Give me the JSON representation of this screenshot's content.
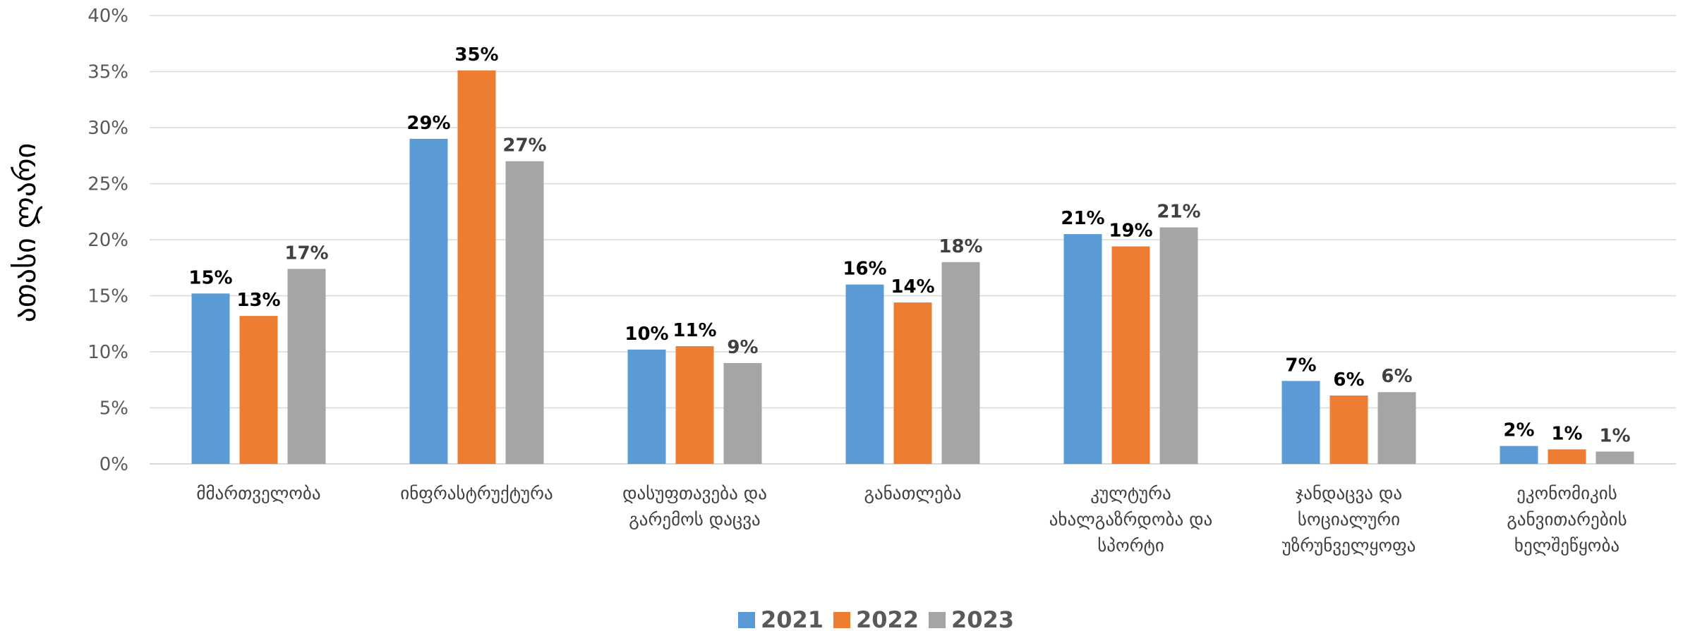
{
  "chart_data": {
    "type": "bar",
    "title": "",
    "ylabel": "ათასი ლარი",
    "xlabel": "",
    "ylim": [
      0,
      40
    ],
    "y_ticks": [
      "0%",
      "5%",
      "10%",
      "15%",
      "20%",
      "25%",
      "30%",
      "35%",
      "40%"
    ],
    "grid": true,
    "legend_position": "bottom",
    "categories": [
      [
        "მმართველობა"
      ],
      [
        "ინფრასტრუქტურა"
      ],
      [
        "დასუფთავება და",
        "გარემოს დაცვა"
      ],
      [
        "განათლება"
      ],
      [
        "კულტურა",
        "ახალგაზრდობა და",
        "სპორტი"
      ],
      [
        "ჯანდაცვა და",
        "სოციალური",
        "უზრუნველყოფა"
      ],
      [
        "ეკონომიკის",
        "განვითარების",
        "ხელშეწყობა"
      ]
    ],
    "series": [
      {
        "name": "2021",
        "color": "#5B9BD5",
        "values": [
          15.2,
          29.0,
          10.2,
          16.0,
          20.5,
          7.4,
          1.6
        ],
        "labels": [
          "15%",
          "29%",
          "10%",
          "16%",
          "21%",
          "7%",
          "2%"
        ]
      },
      {
        "name": "2022",
        "color": "#ED7D31",
        "values": [
          13.2,
          35.1,
          10.5,
          14.4,
          19.4,
          6.1,
          1.3
        ],
        "labels": [
          "13%",
          "35%",
          "11%",
          "14%",
          "19%",
          "6%",
          "1%"
        ]
      },
      {
        "name": "2023",
        "color": "#A5A5A5",
        "values": [
          17.4,
          27.0,
          9.0,
          18.0,
          21.1,
          6.4,
          1.1
        ],
        "labels": [
          "17%",
          "27%",
          "9%",
          "18%",
          "21%",
          "6%",
          "1%"
        ]
      }
    ]
  }
}
